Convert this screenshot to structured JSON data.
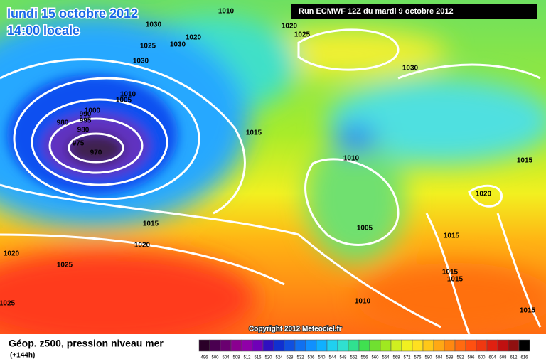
{
  "header": {
    "title": "lundi 15 octobre 2012",
    "time": "14:00 locale",
    "run": "Run ECMWF 12Z du mardi 9 octobre 2012"
  },
  "map": {
    "isobar_labels": [
      "1010",
      "1030",
      "1020",
      "1025",
      "1025",
      "1020",
      "1030",
      "1030",
      "1030",
      "1010",
      "1005",
      "1000",
      "990",
      "995",
      "980",
      "980",
      "975",
      "970",
      "1015",
      "1010",
      "1015",
      "1020",
      "1015",
      "1020",
      "1005",
      "1015",
      "1020",
      "1025",
      "1015",
      "1015",
      "1010",
      "1015",
      "1025"
    ],
    "copyright": "Copyright 2012 Meteociel.fr"
  },
  "footer": {
    "title": "Géop. z500, pression niveau mer",
    "lead": "(+144h)",
    "scale": [
      496,
      500,
      504,
      508,
      512,
      516,
      520,
      524,
      528,
      532,
      536,
      540,
      544,
      548,
      552,
      556,
      560,
      564,
      568,
      572,
      576,
      580,
      584,
      588,
      592,
      596,
      600,
      604,
      608,
      612,
      616
    ]
  }
}
